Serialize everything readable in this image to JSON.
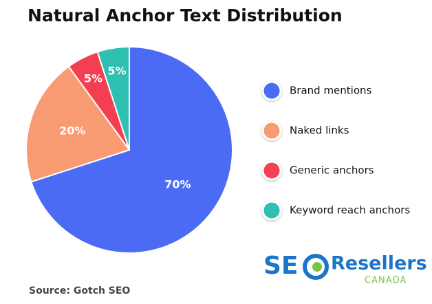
{
  "chart_data": {
    "type": "pie",
    "title": "Natural Anchor Text Distribution",
    "categories": [
      "Brand mentions",
      "Naked links",
      "Generic anchors",
      "Keyword reach anchors"
    ],
    "values": [
      70,
      20,
      5,
      5
    ],
    "value_labels": [
      "70%",
      "20%",
      "5%",
      "5%"
    ],
    "colors": [
      "#4b6bf5",
      "#f99b72",
      "#f43f52",
      "#2fc0b2"
    ],
    "source": "Source: Gotch SEO"
  },
  "logo": {
    "mark": "SE",
    "name": "Resellers",
    "region": "CANADA"
  }
}
